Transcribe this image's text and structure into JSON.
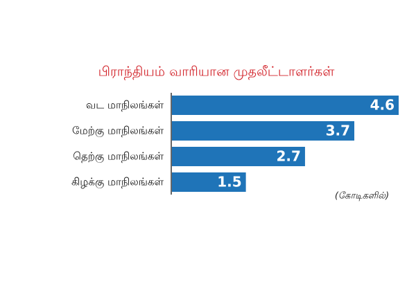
{
  "chart_data": {
    "type": "bar",
    "orientation": "horizontal",
    "title": "பிராந்தியம் வாரியான முதலீட்டாளர்கள்",
    "categories": [
      "வட மாநிலங்கள்",
      "மேற்கு மாநிலங்கள்",
      "தெற்கு மாநிலங்கள்",
      "கிழக்கு மாநிலங்கள்"
    ],
    "values": [
      4.6,
      3.7,
      2.7,
      1.5
    ],
    "color": "#1f74b8",
    "annotation": "(கோடிகளில்)"
  }
}
